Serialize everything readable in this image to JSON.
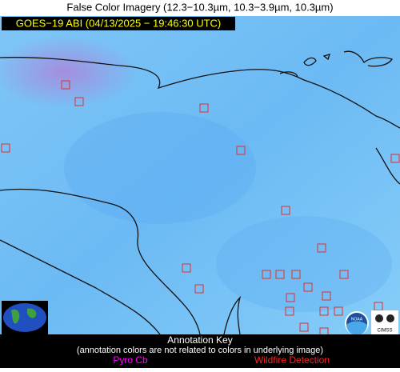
{
  "header": {
    "title": "False Color Imagery (12.3−10.3µm, 10.3−3.9µm, 10.3µm)"
  },
  "banner": "GOES−19 ABI (04/13/2025 − 19:46:30 UTC)",
  "key": {
    "title": "Annotation Key",
    "note": "(annotation colors are not related to colors in underlying image)",
    "items": [
      "Pyro Cb",
      "Wildfire Detection"
    ]
  },
  "logos": {
    "noaa": "NOAA",
    "cimss": "CIMSS"
  }
}
